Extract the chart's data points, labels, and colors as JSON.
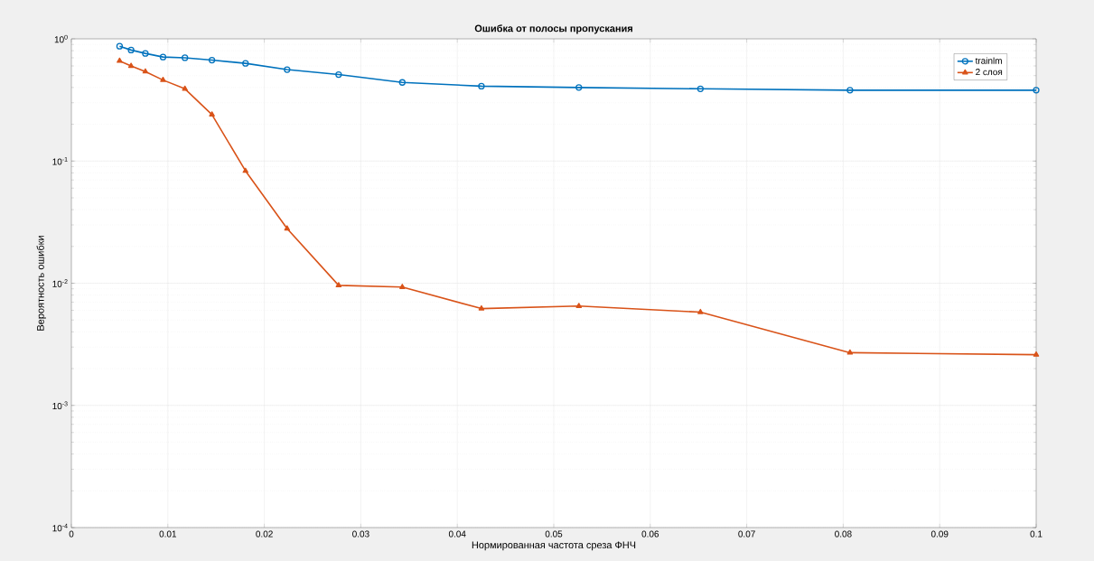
{
  "chart_data": {
    "type": "line",
    "title": "Ошибка от полосы пропускания",
    "xlabel": "Нормированная частота среза ФНЧ",
    "ylabel": "Вероятность ошибки",
    "x": [
      0.005,
      0.00619,
      0.00767,
      0.0095,
      0.01177,
      0.01457,
      0.01805,
      0.02236,
      0.0277,
      0.0343,
      0.0425,
      0.0526,
      0.0652,
      0.0807,
      0.1
    ],
    "series": [
      {
        "name": "trainlm",
        "color": "#0072bd",
        "marker": "circle",
        "values": [
          0.87,
          0.81,
          0.76,
          0.71,
          0.7,
          0.67,
          0.63,
          0.56,
          0.51,
          0.44,
          0.41,
          0.4,
          0.39,
          0.38,
          0.38
        ]
      },
      {
        "name": "2 слоя",
        "color": "#d95319",
        "marker": "triangle",
        "values": [
          0.66,
          0.6,
          0.54,
          0.46,
          0.39,
          0.24,
          0.083,
          0.028,
          0.0096,
          0.0093,
          0.0062,
          0.0065,
          0.0058,
          0.0027,
          0.0026
        ]
      }
    ],
    "xlim": [
      0,
      0.1
    ],
    "ylim": [
      0.0001,
      1
    ],
    "xticks": [
      0,
      0.01,
      0.02,
      0.03,
      0.04,
      0.05,
      0.06,
      0.07,
      0.08,
      0.09,
      0.1
    ],
    "yticks": [
      {
        "value": 0.0001,
        "label": "10$^{-4}$"
      },
      {
        "value": 0.001,
        "label": "10$^{-3}$"
      },
      {
        "value": 0.01,
        "label": "10$^{-2}$"
      },
      {
        "value": 0.1,
        "label": "10$^{-1}$"
      },
      {
        "value": 1,
        "label": "10$^{0}$"
      }
    ],
    "log": "y",
    "grid": true,
    "legend": "top right",
    "line_style": "solid"
  }
}
